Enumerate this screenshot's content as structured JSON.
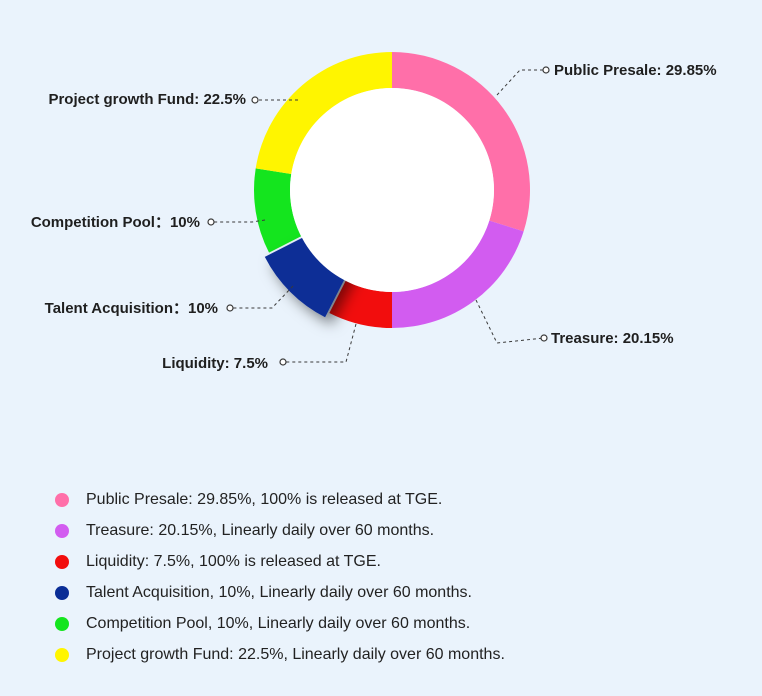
{
  "chart_data": {
    "type": "pie",
    "subtype": "donut",
    "categories": [
      "Public Presale",
      "Treasure",
      "Liquidity",
      "Talent Acquisition",
      "Competition Pool",
      "Project growth Fund"
    ],
    "values": [
      29.85,
      20.15,
      7.5,
      10,
      10,
      22.5
    ],
    "unit": "%",
    "colors": [
      "#ff6fa9",
      "#d25cf0",
      "#f20d0d",
      "#0a2d96",
      "#14e51e",
      "#fff500"
    ],
    "exploded_slice": "Talent Acquisition",
    "callouts": [
      "Public Presale: 29.85%",
      "Treasure: 20.15%",
      "Liquidity: 7.5%",
      "Talent Acquisition：10%",
      "Competition Pool：10%",
      "Project growth Fund: 22.5%"
    ],
    "legend_placement": "bottom",
    "legend": [
      {
        "label": "Public Presale: 29.85%, 100% is released at TGE.",
        "color": "#ff6fa9"
      },
      {
        "label": "Treasure: 20.15%, Linearly daily over 60 months.",
        "color": "#d25cf0"
      },
      {
        "label": "Liquidity: 7.5%, 100% is released at TGE.",
        "color": "#f20d0d"
      },
      {
        "label": "Talent Acquisition, 10%, Linearly daily over 60 months.",
        "color": "#0a2d96"
      },
      {
        "label": "Competition Pool, 10%, Linearly daily over 60 months.",
        "color": "#14e51e"
      },
      {
        "label": "Project growth Fund: 22.5%, Linearly daily over 60 months.",
        "color": "#fff500"
      }
    ]
  }
}
